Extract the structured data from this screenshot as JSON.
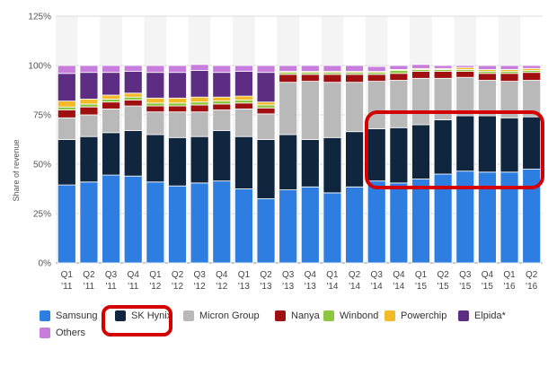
{
  "chart_data": {
    "type": "bar",
    "stacked": true,
    "ylabel": "Share of revenue",
    "ylim": [
      0,
      125
    ],
    "yticks": [
      "0%",
      "25%",
      "50%",
      "75%",
      "100%",
      "125%"
    ],
    "categories": [
      [
        "Q1",
        "'11"
      ],
      [
        "Q2",
        "'11"
      ],
      [
        "Q3",
        "'11"
      ],
      [
        "Q4",
        "'11"
      ],
      [
        "Q1",
        "'12"
      ],
      [
        "Q2",
        "'12"
      ],
      [
        "Q3",
        "'12"
      ],
      [
        "Q4",
        "'12"
      ],
      [
        "Q1",
        "'13"
      ],
      [
        "Q2",
        "'13"
      ],
      [
        "Q3",
        "'13"
      ],
      [
        "Q4",
        "'13"
      ],
      [
        "Q1",
        "'14"
      ],
      [
        "Q2",
        "'14"
      ],
      [
        "Q3",
        "'14"
      ],
      [
        "Q4",
        "'14"
      ],
      [
        "Q1",
        "'15"
      ],
      [
        "Q2",
        "'15"
      ],
      [
        "Q3",
        "'15"
      ],
      [
        "Q4",
        "'15"
      ],
      [
        "Q1",
        "'16"
      ],
      [
        "Q2",
        "'16"
      ]
    ],
    "series": [
      {
        "name": "Samsung",
        "color": "#2e7de1",
        "values": [
          39.5,
          41,
          44.5,
          44,
          41,
          39,
          40.5,
          41.5,
          37.5,
          32.5,
          37,
          38.5,
          35.5,
          38.5,
          41.5,
          40.5,
          42.5,
          45,
          46.5,
          46,
          46,
          47.5
        ]
      },
      {
        "name": "SK Hynix",
        "color": "#10263f",
        "values": [
          23,
          23,
          21.5,
          23,
          24,
          24.5,
          23.5,
          25.5,
          26.5,
          30,
          28,
          24,
          28,
          28,
          26.5,
          28,
          27.5,
          27.5,
          28,
          28.5,
          27.5,
          26.5
        ]
      },
      {
        "name": "Micron Group",
        "color": "#b9b9b9",
        "values": [
          11,
          11,
          12,
          12.5,
          11.5,
          13,
          12.5,
          10.5,
          14,
          13,
          26.5,
          29.5,
          28,
          25,
          24,
          24,
          23.5,
          21,
          19.5,
          18,
          18.5,
          18.5
        ]
      },
      {
        "name": "Nanya",
        "color": "#a01010",
        "values": [
          4,
          4,
          3.5,
          3,
          3,
          3,
          3.5,
          3,
          3,
          3,
          4,
          3.5,
          4,
          4,
          3.5,
          3.5,
          3.5,
          3.5,
          3,
          3.5,
          4,
          4
        ]
      },
      {
        "name": "Winbond",
        "color": "#8dc63f",
        "values": [
          1.5,
          1.5,
          1.5,
          1.5,
          1.5,
          1.5,
          1.5,
          1.5,
          1.5,
          1.5,
          1,
          1,
          1,
          1,
          1,
          1.5,
          1,
          1,
          1,
          1,
          1,
          1
        ]
      },
      {
        "name": "Powerchip",
        "color": "#f2b928",
        "values": [
          3,
          2.5,
          2,
          2,
          2.5,
          2.5,
          2.5,
          2,
          2,
          1.5,
          0.5,
          0.5,
          0.5,
          0.5,
          0.5,
          0.5,
          0.5,
          0.5,
          1,
          1,
          1,
          1
        ]
      },
      {
        "name": "Elpida*",
        "color": "#5c2d83",
        "values": [
          14,
          13.5,
          11.5,
          11,
          13,
          13,
          13.5,
          12.5,
          12.5,
          15,
          0,
          0,
          0,
          0,
          0,
          0,
          0,
          0,
          0,
          0,
          0,
          0
        ]
      },
      {
        "name": "Others",
        "color": "#c77ddb",
        "values": [
          4,
          3.5,
          3.5,
          3,
          3.5,
          3.5,
          3,
          3.5,
          3,
          3.5,
          3,
          3,
          3,
          3,
          2.5,
          2,
          2,
          1.5,
          1,
          2,
          2,
          1.5
        ]
      }
    ],
    "highlight_series": "SK Hynix",
    "highlight_range": [
      "Q3 '14",
      "Q2 '16"
    ],
    "grid": true,
    "legend_position": "bottom-left"
  }
}
